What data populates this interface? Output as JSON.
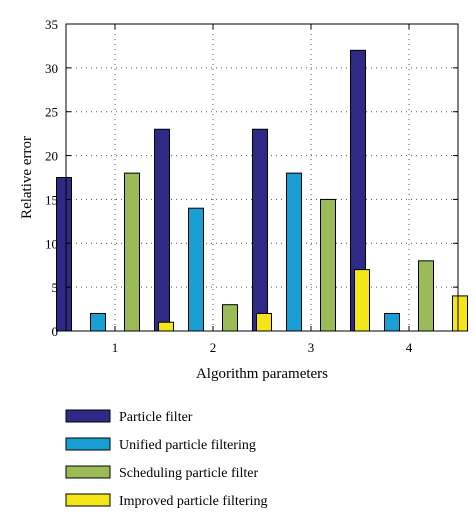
{
  "chart_data": {
    "type": "bar",
    "categories": [
      "1",
      "2",
      "3",
      "4"
    ],
    "series": [
      {
        "name": "Particle filter",
        "values": [
          17.5,
          23,
          23,
          32
        ],
        "color": "#2e2a86"
      },
      {
        "name": "Unified particle filtering",
        "values": [
          2,
          14,
          18,
          2
        ],
        "color": "#1a9fd4"
      },
      {
        "name": "Scheduling particle filter",
        "values": [
          18,
          3,
          15,
          8
        ],
        "color": "#9bbb59"
      },
      {
        "name": "Improved particle filtering",
        "values": [
          1,
          2,
          7,
          4
        ],
        "color": "#f5e61a"
      }
    ],
    "xlabel": "Algorithm parameters",
    "ylabel": "Relative error",
    "ylim": [
      0,
      35
    ],
    "yticks": [
      0,
      5,
      10,
      15,
      20,
      25,
      30,
      35
    ],
    "grid": true,
    "legend_position": "bottom"
  }
}
